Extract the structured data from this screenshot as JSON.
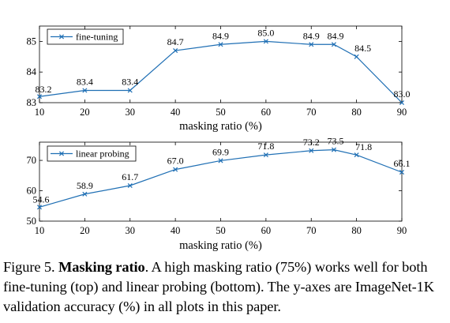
{
  "chart_data": [
    {
      "type": "line",
      "x": [
        10,
        20,
        30,
        40,
        50,
        60,
        70,
        75,
        80,
        90
      ],
      "series": [
        {
          "name": "fine-tuning",
          "values": [
            83.2,
            83.4,
            83.4,
            84.7,
            84.9,
            85.0,
            84.9,
            84.9,
            84.5,
            83.0
          ],
          "color": "#1f6fb4",
          "marker": "x"
        }
      ],
      "data_labels": [
        "83.2",
        "83.4",
        "83.4",
        "84.7",
        "84.9",
        "85.0",
        "84.9",
        "84.9",
        "84.5",
        "83.0"
      ],
      "xlabel": "masking ratio (%)",
      "ylabel": "",
      "xlim": [
        10,
        90
      ],
      "ylim": [
        83,
        85.5
      ],
      "xticks": [
        10,
        20,
        30,
        40,
        50,
        60,
        70,
        80,
        90
      ],
      "yticks": [
        83,
        84,
        85
      ],
      "legend": "top-left",
      "grid": false
    },
    {
      "type": "line",
      "x": [
        10,
        20,
        30,
        40,
        50,
        60,
        70,
        75,
        80,
        90
      ],
      "series": [
        {
          "name": "linear probing",
          "values": [
            54.6,
            58.9,
            61.7,
            67.0,
            69.9,
            71.8,
            73.2,
            73.5,
            71.8,
            66.1
          ],
          "color": "#1f6fb4",
          "marker": "x"
        }
      ],
      "data_labels": [
        "54.6",
        "58.9",
        "61.7",
        "67.0",
        "69.9",
        "71.8",
        "73.2",
        "73.5",
        "71.8",
        "66.1"
      ],
      "xlabel": "masking ratio (%)",
      "ylabel": "",
      "xlim": [
        10,
        90
      ],
      "ylim": [
        50,
        76
      ],
      "xticks": [
        10,
        20,
        30,
        40,
        50,
        60,
        70,
        80,
        90
      ],
      "yticks": [
        50,
        60,
        70
      ],
      "legend": "top-left",
      "grid": false
    }
  ],
  "caption": {
    "prefix": "Figure 5. ",
    "bold": "Masking ratio",
    "text": ". A high masking ratio (75%) works well for both fine-tuning (top) and linear probing (bottom). The y-axes are ImageNet-1K validation accuracy (%) in all plots in this paper."
  }
}
